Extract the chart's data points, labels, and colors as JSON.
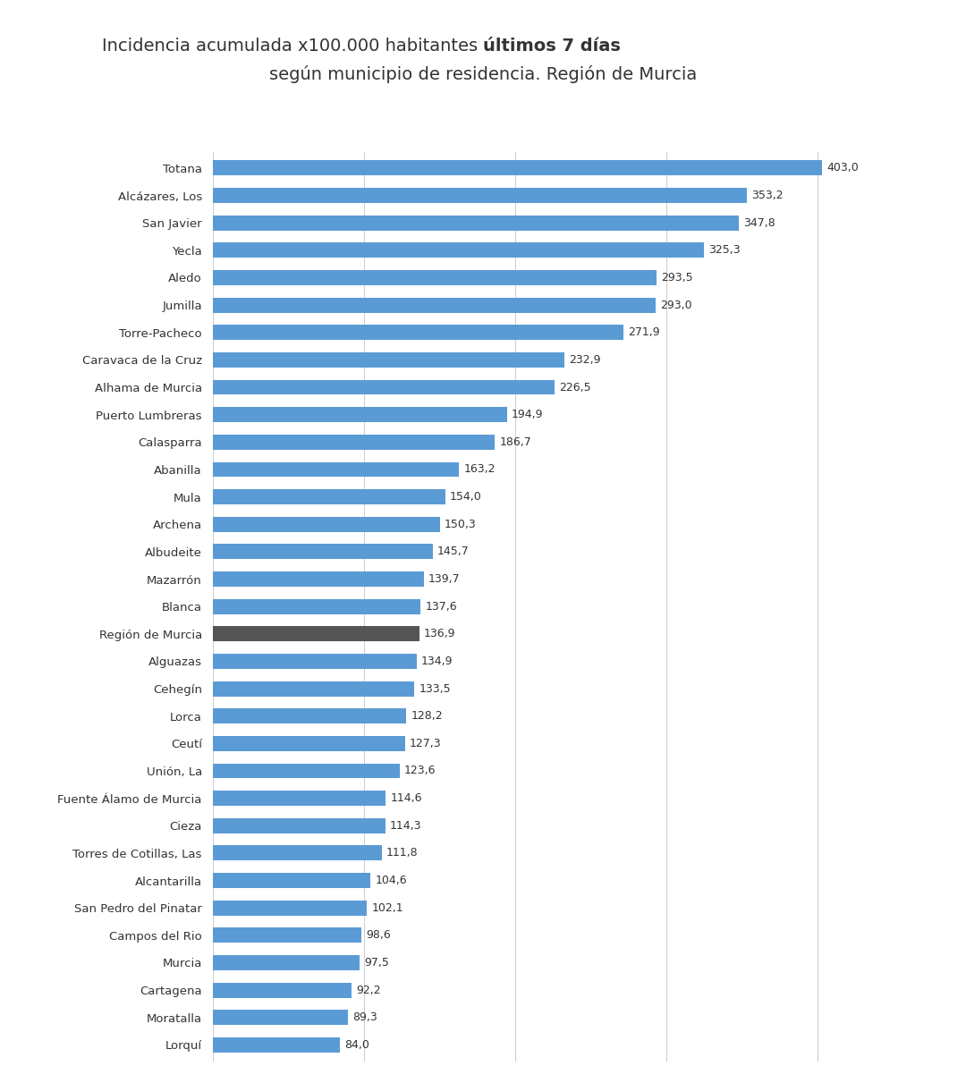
{
  "title_normal": "Incidencia acumulada x100.000 habitantes ",
  "title_bold": "últimos 7 días",
  "title_line2": "según municipio de residencia. Región de Murcia",
  "categories": [
    "Totana",
    "Alcázares, Los",
    "San Javier",
    "Yecla",
    "Aledo",
    "Jumilla",
    "Torre-Pacheco",
    "Caravaca de la Cruz",
    "Alhama de Murcia",
    "Puerto Lumbreras",
    "Calasparra",
    "Abanilla",
    "Mula",
    "Archena",
    "Albudeite",
    "Mazarrón",
    "Blanca",
    "Región de Murcia",
    "Alguazas",
    "Cehegín",
    "Lorca",
    "Ceutí",
    "Unión, La",
    "Fuente Álamo de Murcia",
    "Cieza",
    "Torres de Cotillas, Las",
    "Alcantarilla",
    "San Pedro del Pinatar",
    "Campos del Rio",
    "Murcia",
    "Cartagena",
    "Moratalla",
    "Lorquí"
  ],
  "values": [
    403.0,
    353.2,
    347.8,
    325.3,
    293.5,
    293.0,
    271.9,
    232.9,
    226.5,
    194.9,
    186.7,
    163.2,
    154.0,
    150.3,
    145.7,
    139.7,
    137.6,
    136.9,
    134.9,
    133.5,
    128.2,
    127.3,
    123.6,
    114.6,
    114.3,
    111.8,
    104.6,
    102.1,
    98.6,
    97.5,
    92.2,
    89.3,
    84.0
  ],
  "bar_color_default": "#5b9bd5",
  "bar_color_highlight": "#555555",
  "highlight_index": 17,
  "background_color": "#ffffff",
  "grid_color": "#cccccc",
  "label_color": "#333333",
  "value_color": "#333333",
  "title_color": "#333333",
  "xlim": [
    0,
    460
  ],
  "bar_height": 0.55,
  "figsize": [
    10.8,
    12.11
  ],
  "dpi": 100,
  "title_fontsize": 14,
  "label_fontsize": 9.5,
  "value_fontsize": 9
}
